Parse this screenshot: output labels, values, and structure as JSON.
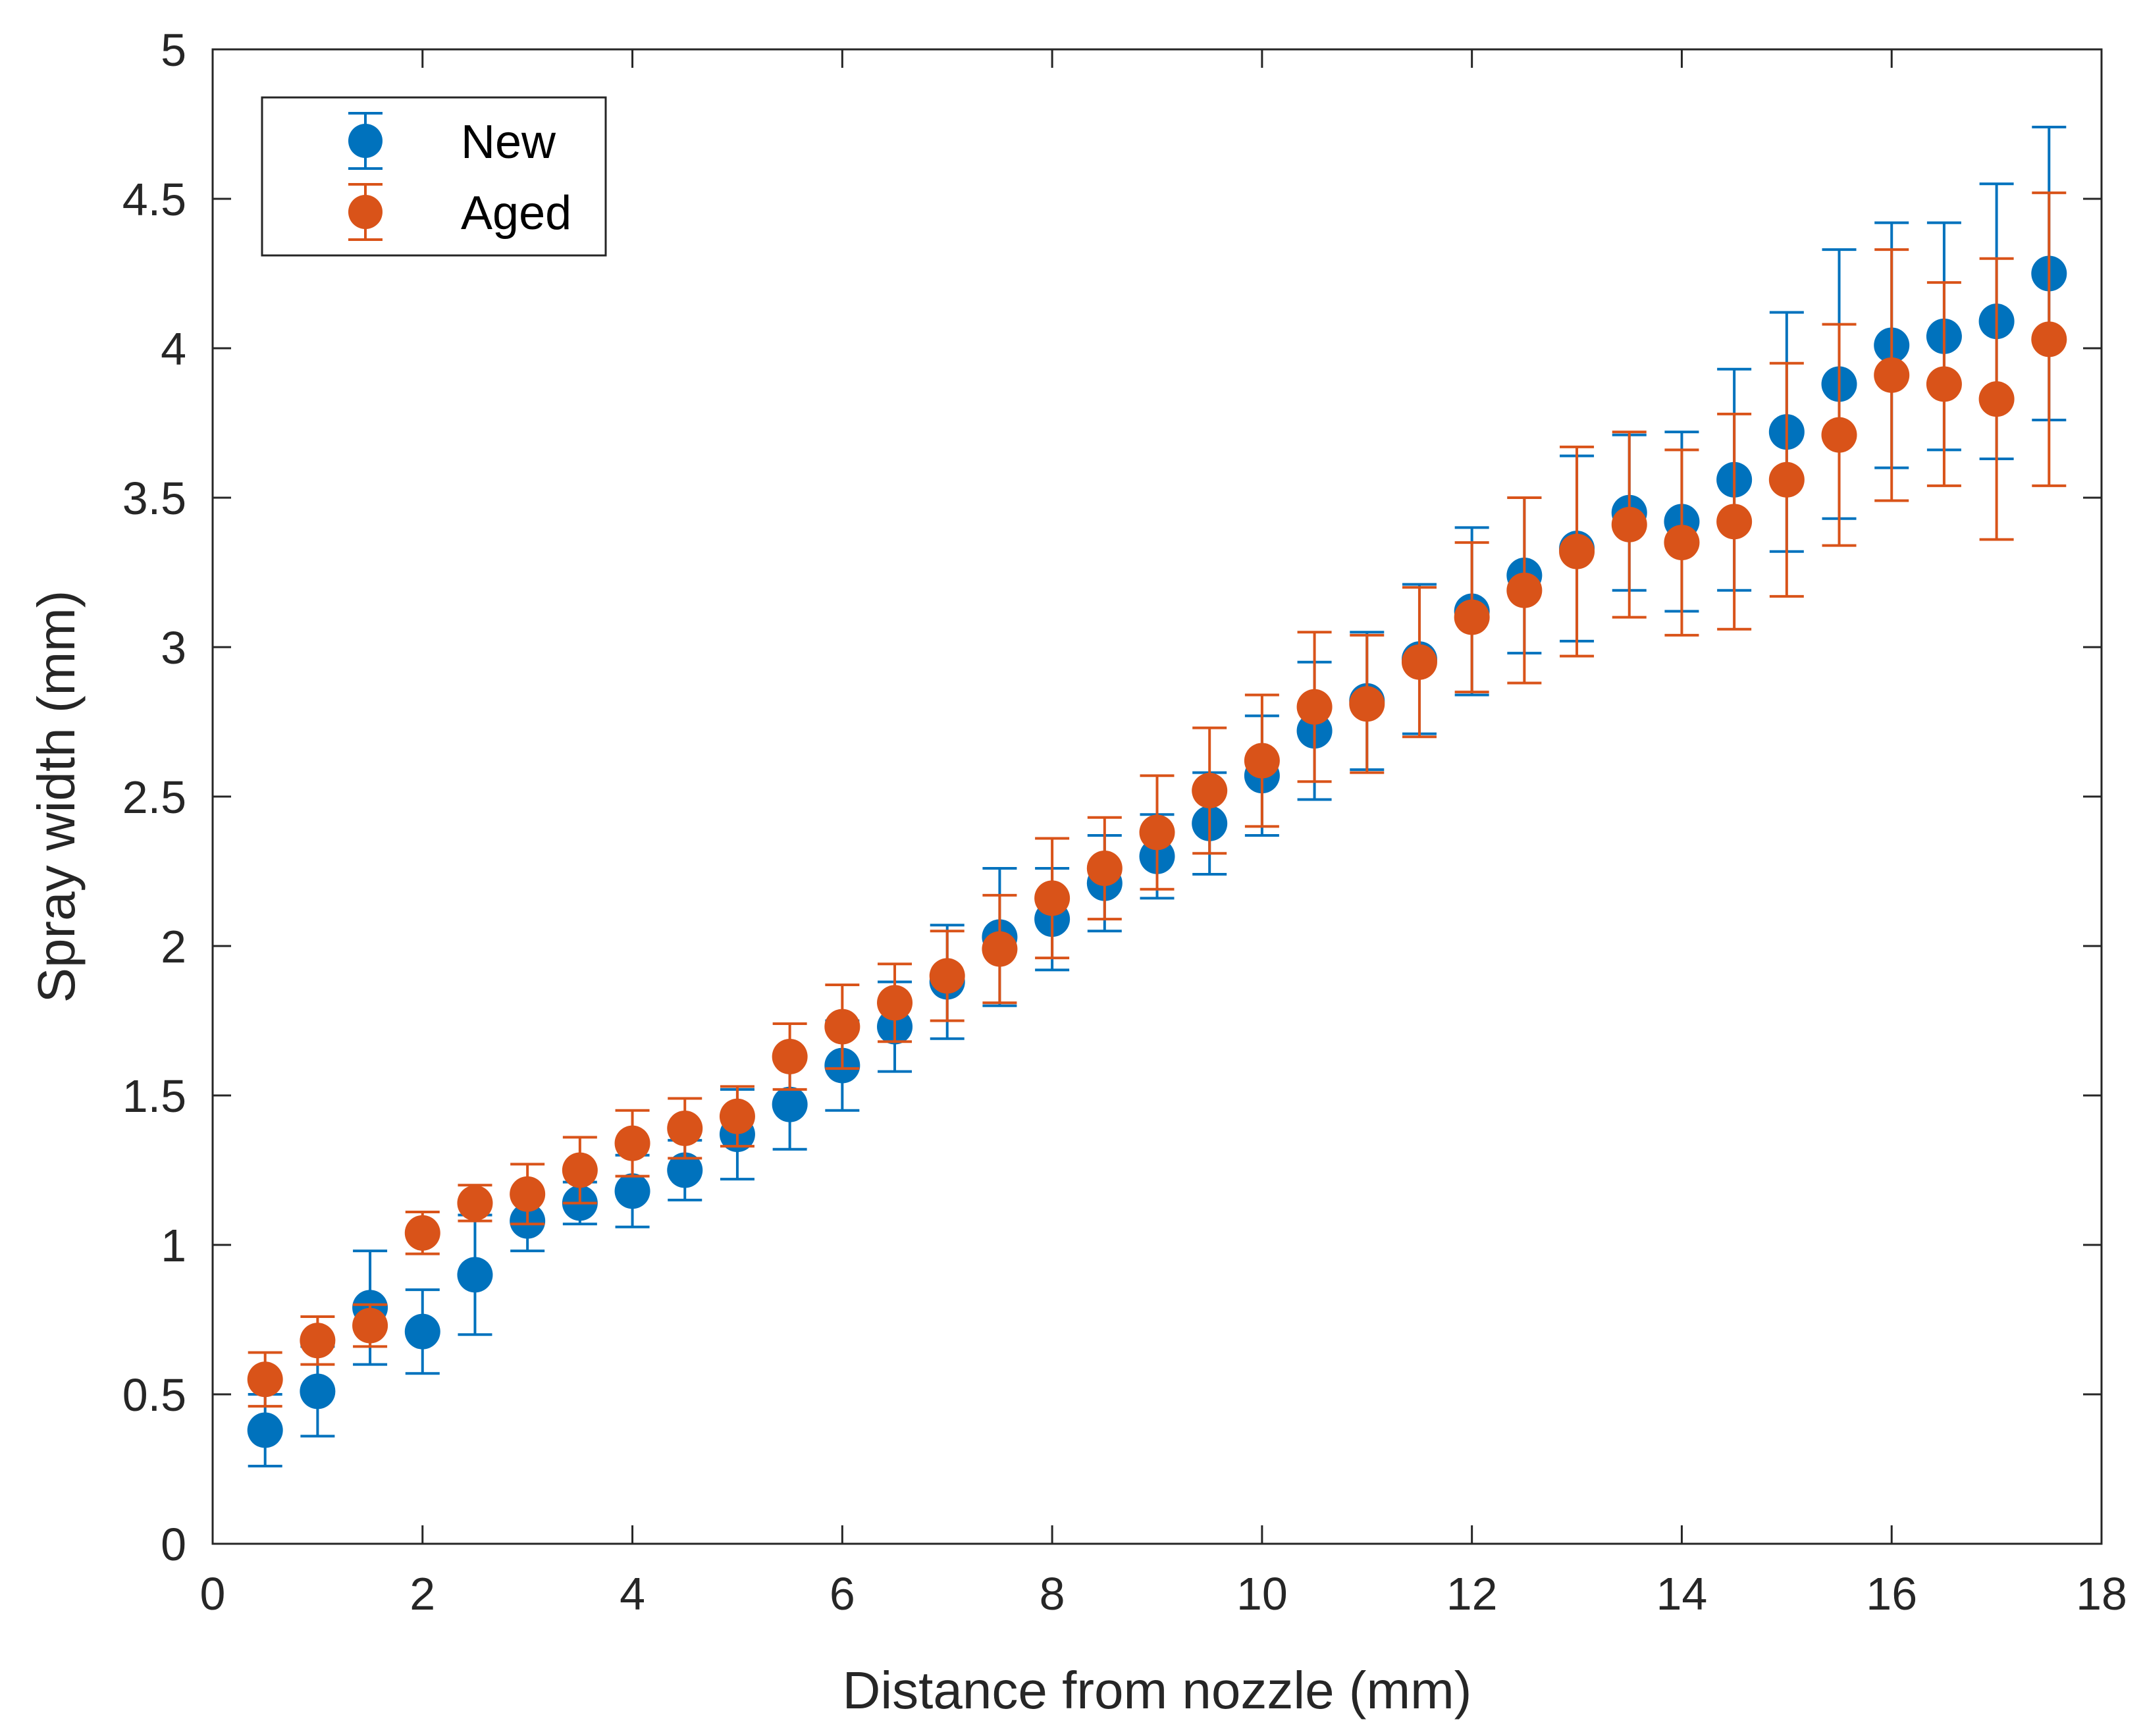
{
  "chart_data": {
    "type": "scatter",
    "title": "",
    "xlabel": "Distance from nozzle (mm)",
    "ylabel": "Spray width (mm)",
    "xlim": [
      0,
      18
    ],
    "ylim": [
      0,
      5
    ],
    "xticks": [
      0,
      2,
      4,
      6,
      8,
      10,
      12,
      14,
      16,
      18
    ],
    "xtick_labels": [
      "0",
      "2",
      "4",
      "6",
      "8",
      "10",
      "12",
      "14",
      "16",
      "18"
    ],
    "yticks": [
      0,
      0.5,
      1,
      1.5,
      2,
      2.5,
      3,
      3.5,
      4,
      4.5,
      5
    ],
    "ytick_labels": [
      "0",
      "0.5",
      "1",
      "1.5",
      "2",
      "2.5",
      "3",
      "3.5",
      "4",
      "4.5",
      "5"
    ],
    "grid": false,
    "legend_position": "top-left",
    "x": [
      0.5,
      1,
      1.5,
      2,
      2.5,
      3,
      3.5,
      4,
      4.5,
      5,
      5.5,
      6,
      6.5,
      7,
      7.5,
      8,
      8.5,
      9,
      9.5,
      10,
      10.5,
      11,
      11.5,
      12,
      12.5,
      13,
      13.5,
      14,
      14.5,
      15,
      15.5,
      16,
      16.5,
      17,
      17.5
    ],
    "series": [
      {
        "name": "New",
        "color": "#0072BD",
        "values": [
          0.38,
          0.51,
          0.79,
          0.71,
          0.9,
          1.08,
          1.14,
          1.18,
          1.25,
          1.37,
          1.47,
          1.6,
          1.73,
          1.88,
          2.03,
          2.09,
          2.21,
          2.3,
          2.41,
          2.57,
          2.72,
          2.82,
          2.96,
          3.12,
          3.24,
          3.33,
          3.45,
          3.42,
          3.56,
          3.72,
          3.88,
          4.01,
          4.04,
          4.09,
          4.25
        ],
        "errors": [
          0.12,
          0.15,
          0.19,
          0.14,
          0.2,
          0.1,
          0.07,
          0.12,
          0.1,
          0.15,
          0.15,
          0.15,
          0.15,
          0.19,
          0.23,
          0.17,
          0.16,
          0.14,
          0.17,
          0.2,
          0.23,
          0.23,
          0.25,
          0.28,
          0.26,
          0.31,
          0.26,
          0.3,
          0.37,
          0.4,
          0.45,
          0.41,
          0.38,
          0.46,
          0.49
        ]
      },
      {
        "name": "Aged",
        "color": "#D95319",
        "values": [
          0.55,
          0.68,
          0.73,
          1.04,
          1.14,
          1.17,
          1.25,
          1.34,
          1.39,
          1.43,
          1.63,
          1.73,
          1.81,
          1.9,
          1.99,
          2.16,
          2.26,
          2.38,
          2.52,
          2.62,
          2.8,
          2.81,
          2.95,
          3.1,
          3.19,
          3.32,
          3.41,
          3.35,
          3.42,
          3.56,
          3.71,
          3.91,
          3.88,
          3.83,
          4.03
        ],
        "errors": [
          0.09,
          0.08,
          0.07,
          0.07,
          0.06,
          0.1,
          0.11,
          0.11,
          0.1,
          0.1,
          0.11,
          0.14,
          0.13,
          0.15,
          0.18,
          0.2,
          0.17,
          0.19,
          0.21,
          0.22,
          0.25,
          0.23,
          0.25,
          0.25,
          0.31,
          0.35,
          0.31,
          0.31,
          0.36,
          0.39,
          0.37,
          0.42,
          0.34,
          0.47,
          0.49
        ]
      }
    ]
  }
}
